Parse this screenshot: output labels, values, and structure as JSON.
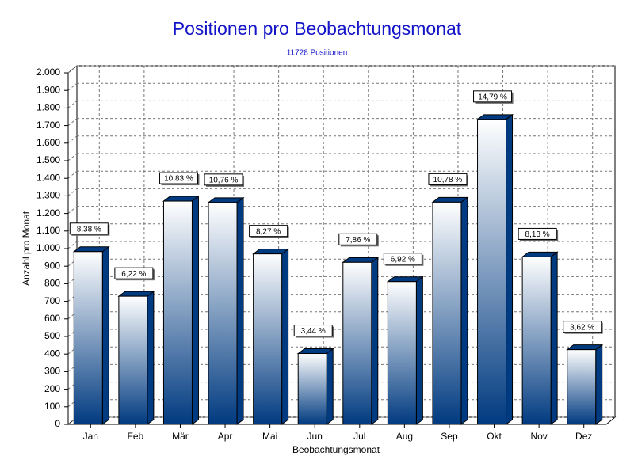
{
  "chart_data": {
    "type": "bar3d",
    "title": "Positionen pro Beobachtungsmonat",
    "subtitle": "11728 Positionen",
    "x_label": "Beobachtungsmonat",
    "y_label": "Anzahl pro Monat",
    "categories": [
      "Jan",
      "Feb",
      "Mär",
      "Apr",
      "Mai",
      "Jun",
      "Jul",
      "Aug",
      "Sep",
      "Okt",
      "Nov",
      "Dez"
    ],
    "values": [
      983,
      729,
      1270,
      1262,
      970,
      403,
      922,
      812,
      1264,
      1735,
      953,
      425
    ],
    "annotations": [
      "8,38 %",
      "6,22 %",
      "10,83 %",
      "10,76 %",
      "8,27 %",
      "3,44 %",
      "7,86 %",
      "6,92 %",
      "10,78 %",
      "14,79 %",
      "8,13 %",
      "3,62 %"
    ],
    "color": "#003a80",
    "ylim": [
      0,
      2000
    ],
    "yticks": [
      0,
      100,
      200,
      300,
      400,
      500,
      600,
      700,
      800,
      900,
      {
        "value": 1000,
        "label": "1.000"
      },
      {
        "value": 1100,
        "label": "1.100"
      },
      {
        "value": 1200,
        "label": "1.200"
      },
      {
        "value": 1300,
        "label": "1.300"
      },
      {
        "value": 1400,
        "label": "1.400"
      },
      {
        "value": 1500,
        "label": "1.500"
      },
      {
        "value": 1600,
        "label": "1.600"
      },
      {
        "value": 1700,
        "label": "1.700"
      },
      {
        "value": 1800,
        "label": "1.800"
      },
      {
        "value": 1900,
        "label": "1.900"
      },
      {
        "value": 2000,
        "label": "2.000"
      }
    ],
    "grid": true
  }
}
